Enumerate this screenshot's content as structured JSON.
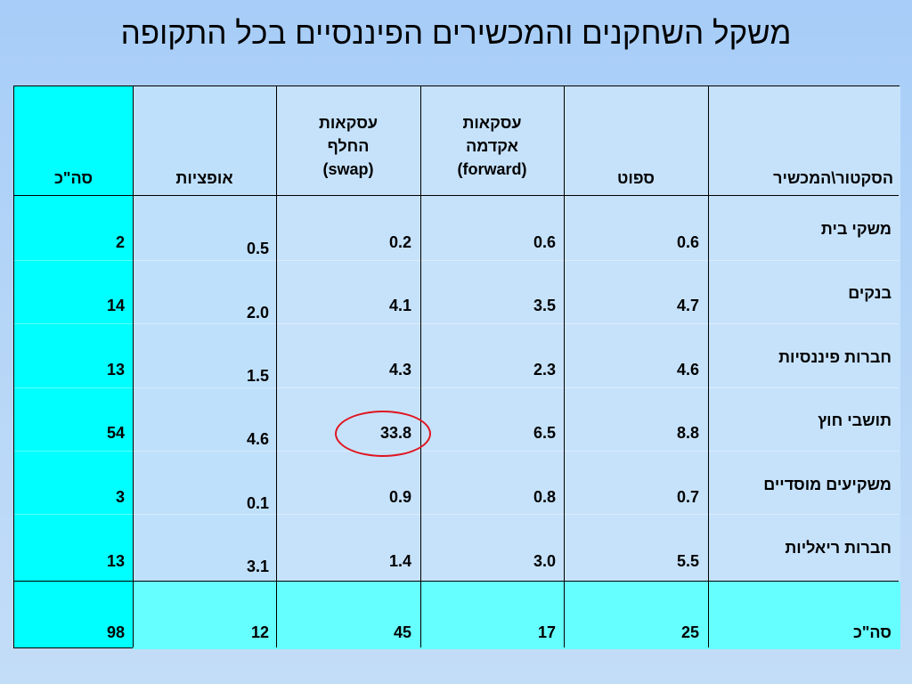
{
  "title": "משקל השחקנים והמכשירים הפיננסיים בכל התקופה",
  "table": {
    "headers": {
      "sector": "הסקטור\\המכשיר",
      "spot": "ספוט",
      "forward_1": "עסקאות",
      "forward_2": "אקדמה",
      "forward_3": "(forward)",
      "swap_1": "עסקאות",
      "swap_2": "החלף",
      "swap_3": "(swap)",
      "options": "אופציות",
      "total": "סה\"כ"
    },
    "rows": [
      {
        "label": "משקי בית",
        "spot": "0.6",
        "forward": "0.6",
        "swap": "0.2",
        "options": "0.5",
        "total": "2"
      },
      {
        "label": "בנקים",
        "spot": "4.7",
        "forward": "3.5",
        "swap": "4.1",
        "options": "2.0",
        "total": "14"
      },
      {
        "label": "חברות פיננסיות",
        "spot": "4.6",
        "forward": "2.3",
        "swap": "4.3",
        "options": "1.5",
        "total": "13"
      },
      {
        "label": "תושבי חוץ",
        "spot": "8.8",
        "forward": "6.5",
        "swap": "33.8",
        "options": "4.6",
        "total": "54"
      },
      {
        "label": "משקיעים מוסדיים",
        "spot": "0.7",
        "forward": "0.8",
        "swap": "0.9",
        "options": "0.1",
        "total": "3"
      },
      {
        "label": "חברות ריאליות",
        "spot": "5.5",
        "forward": "3.0",
        "swap": "1.4",
        "options": "3.1",
        "total": "13"
      }
    ],
    "total_row": {
      "label": "סה\"כ",
      "spot": "25",
      "forward": "17",
      "swap": "45",
      "options": "12",
      "total": "98"
    }
  },
  "colors": {
    "highlight_ring": "#e0151f",
    "total_column": "#00ffff",
    "total_row": "#66ffff"
  }
}
